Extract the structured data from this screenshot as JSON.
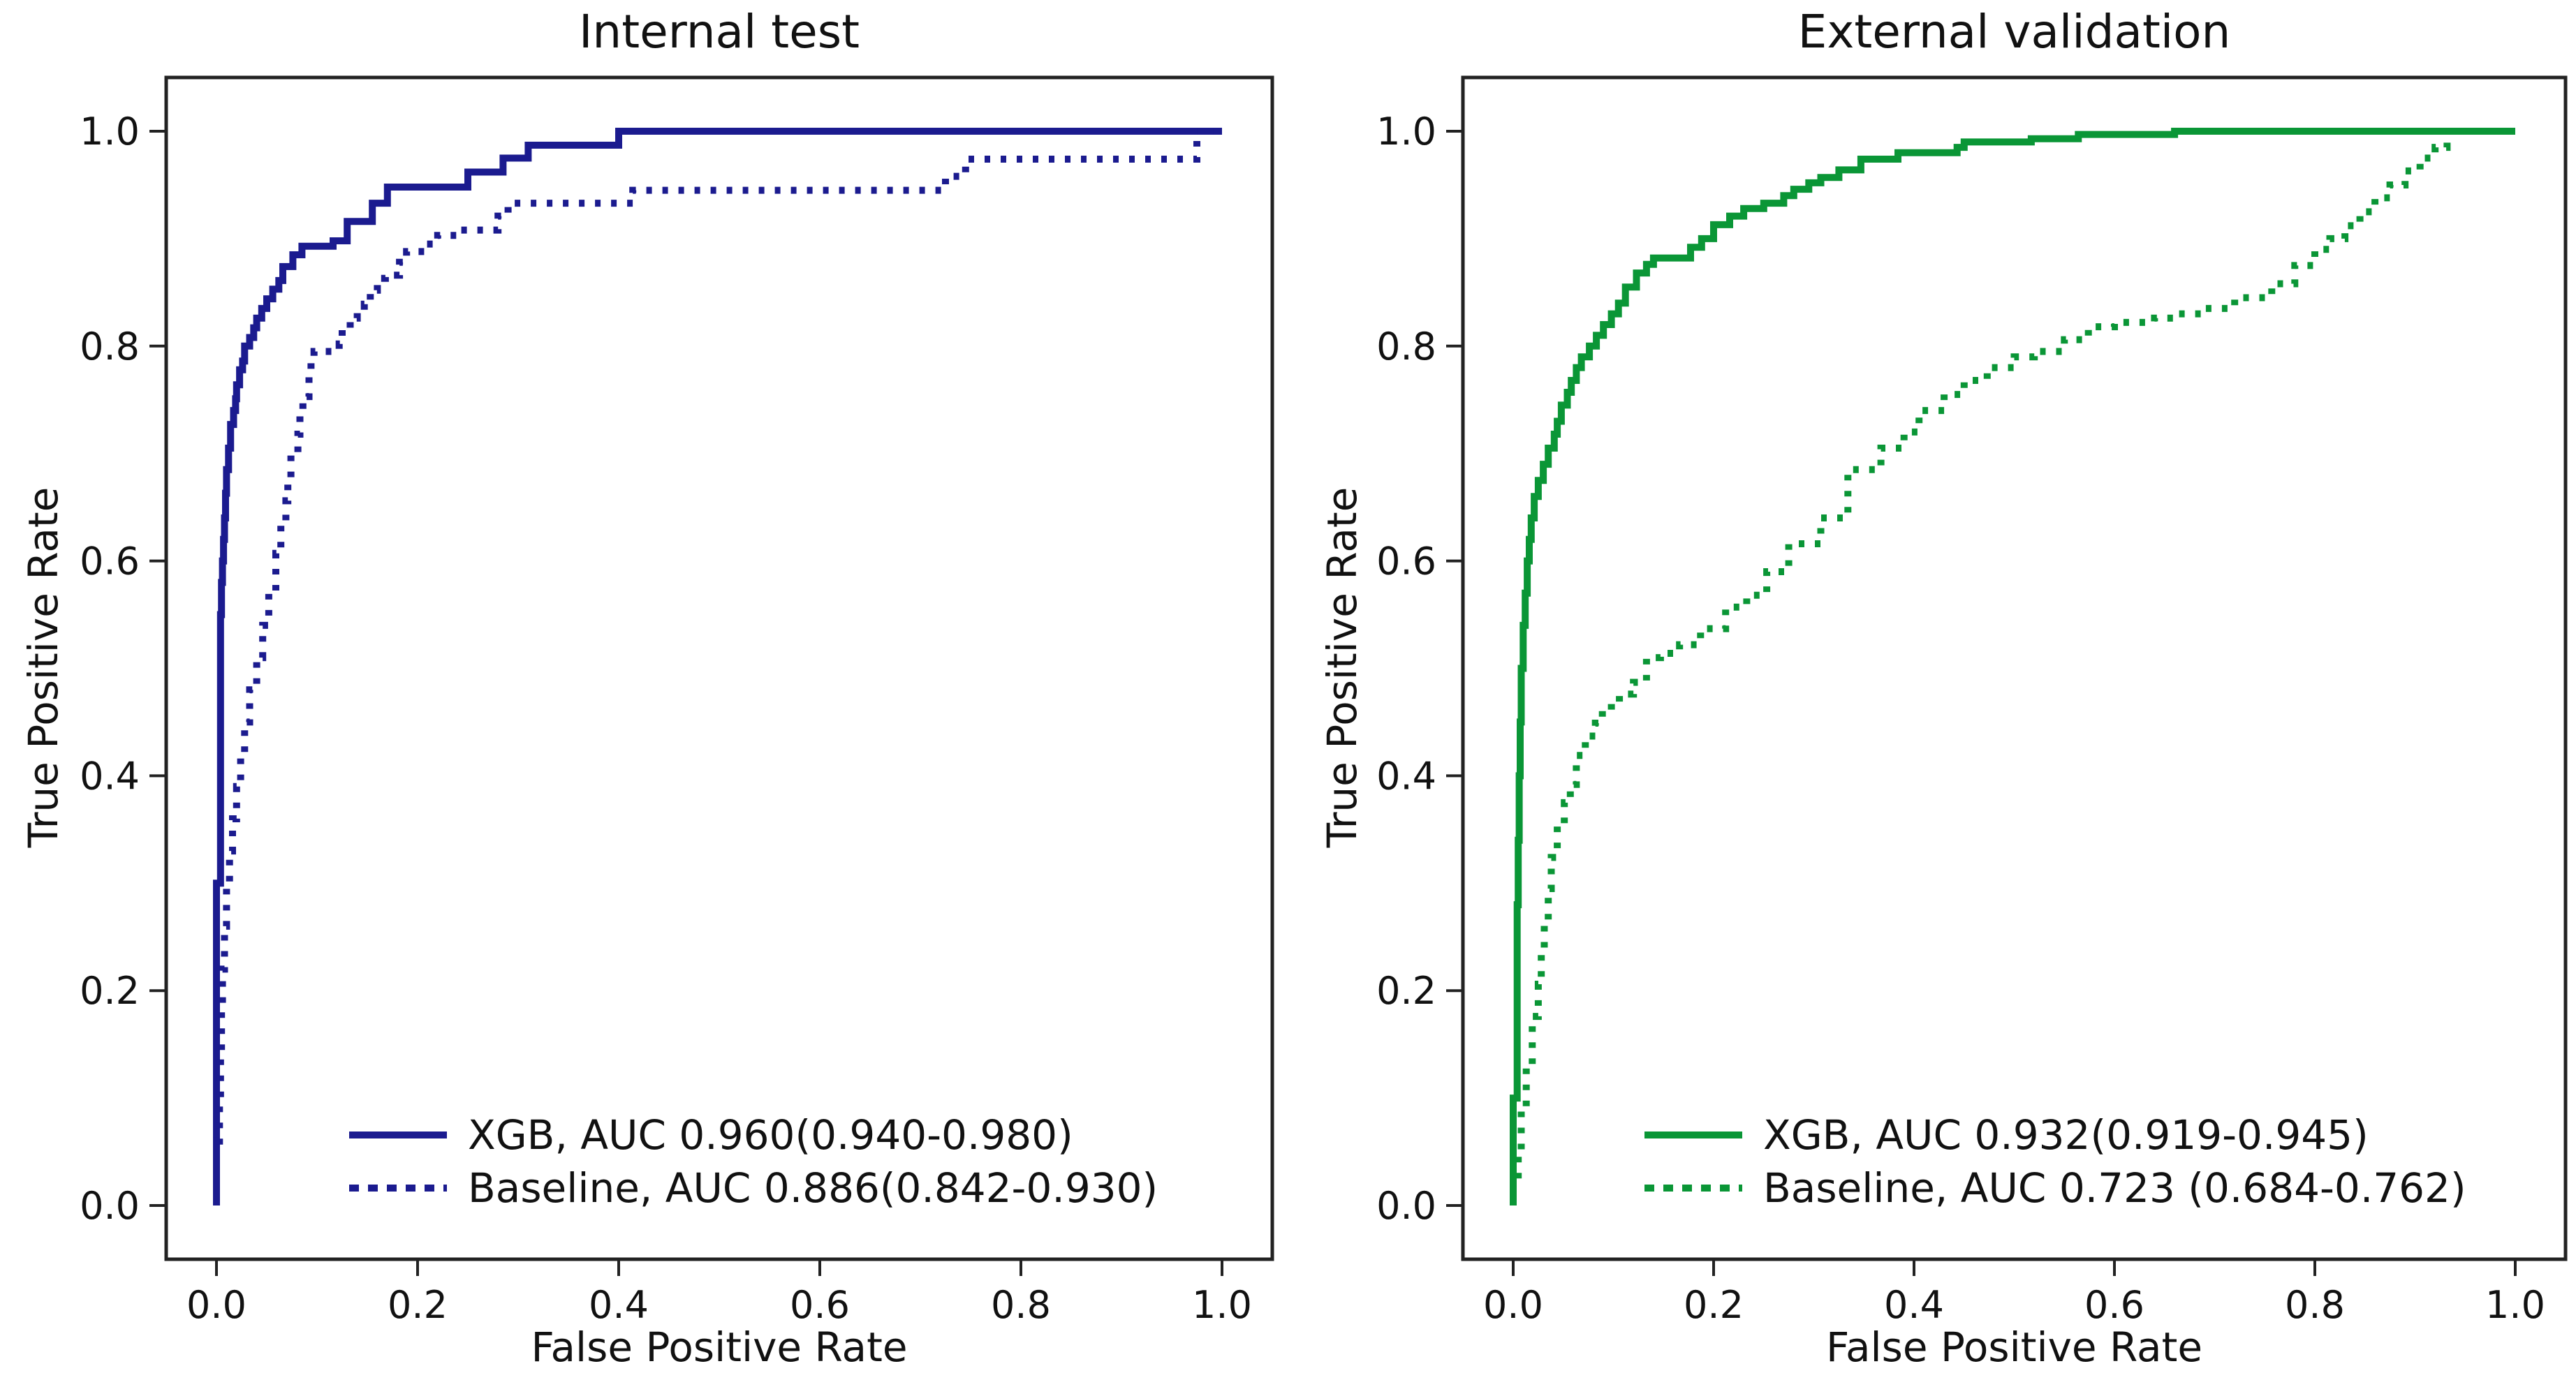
{
  "figure": {
    "background_color": "#ffffff",
    "text_color": "#111111",
    "spine_color": "#222222"
  },
  "chart_data": [
    {
      "type": "line",
      "subtype": "roc-step-curves",
      "title": "Internal test",
      "xlabel": "False Positive Rate",
      "ylabel": "True Positive Rate",
      "xlim": [
        -0.05,
        1.05
      ],
      "ylim": [
        -0.05,
        1.05
      ],
      "grid": false,
      "legend_position": "lower right",
      "xticks": {
        "labels": [
          "0.0",
          "0.2",
          "0.4",
          "0.6",
          "0.8",
          "1.0"
        ],
        "values": [
          0,
          0.2,
          0.4,
          0.6,
          0.8,
          1.0
        ]
      },
      "yticks": {
        "labels": [
          "0.0",
          "0.2",
          "0.4",
          "0.6",
          "0.8",
          "1.0"
        ],
        "values": [
          0,
          0.2,
          0.4,
          0.6,
          0.8,
          1.0
        ]
      },
      "accent_color": "#1b1b8f",
      "series": [
        {
          "name": "XGB",
          "legend_label": "XGB, AUC 0.960(0.940-0.980)",
          "auc": 0.96,
          "auc_ci": [
            0.94,
            0.98
          ],
          "line_style": "solid",
          "color": "#1b1b8f",
          "points": [
            [
              0,
              0
            ],
            [
              0.004,
              0.3
            ],
            [
              0.004,
              0.5
            ],
            [
              0.005,
              0.55
            ],
            [
              0.006,
              0.58
            ],
            [
              0.007,
              0.6
            ],
            [
              0.008,
              0.62
            ],
            [
              0.009,
              0.64
            ],
            [
              0.01,
              0.663
            ],
            [
              0.012,
              0.685
            ],
            [
              0.014,
              0.705
            ],
            [
              0.017,
              0.727
            ],
            [
              0.019,
              0.74
            ],
            [
              0.02,
              0.751
            ],
            [
              0.023,
              0.764
            ],
            [
              0.026,
              0.778
            ],
            [
              0.028,
              0.786
            ],
            [
              0.033,
              0.8
            ],
            [
              0.037,
              0.808
            ],
            [
              0.04,
              0.817
            ],
            [
              0.045,
              0.826
            ],
            [
              0.05,
              0.835
            ],
            [
              0.056,
              0.844
            ],
            [
              0.062,
              0.853
            ],
            [
              0.066,
              0.861
            ],
            [
              0.076,
              0.874
            ],
            [
              0.085,
              0.885
            ],
            [
              0.116,
              0.893
            ],
            [
              0.13,
              0.898
            ],
            [
              0.155,
              0.916
            ],
            [
              0.17,
              0.933
            ],
            [
              0.25,
              0.948
            ],
            [
              0.285,
              0.962
            ],
            [
              0.31,
              0.975
            ],
            [
              0.4,
              0.987
            ],
            [
              0.435,
              1.0
            ],
            [
              1.0,
              1.0
            ]
          ]
        },
        {
          "name": "Baseline",
          "legend_label": "Baseline, AUC 0.886(0.842-0.930)",
          "auc": 0.886,
          "auc_ci": [
            0.842,
            0.93
          ],
          "line_style": "dotted",
          "color": "#1b1b8f",
          "points": [
            [
              0,
              0
            ],
            [
              0.003,
              0.06
            ],
            [
              0.004,
              0.1
            ],
            [
              0.005,
              0.14
            ],
            [
              0.006,
              0.18
            ],
            [
              0.008,
              0.22
            ],
            [
              0.01,
              0.26
            ],
            [
              0.013,
              0.3
            ],
            [
              0.016,
              0.33
            ],
            [
              0.02,
              0.36
            ],
            [
              0.024,
              0.39
            ],
            [
              0.028,
              0.42
            ],
            [
              0.033,
              0.45
            ],
            [
              0.04,
              0.48
            ],
            [
              0.046,
              0.51
            ],
            [
              0.052,
              0.54
            ],
            [
              0.059,
              0.57
            ],
            [
              0.064,
              0.607
            ],
            [
              0.069,
              0.634
            ],
            [
              0.071,
              0.656
            ],
            [
              0.074,
              0.676
            ],
            [
              0.081,
              0.7
            ],
            [
              0.083,
              0.718
            ],
            [
              0.086,
              0.735
            ],
            [
              0.092,
              0.753
            ],
            [
              0.094,
              0.771
            ],
            [
              0.097,
              0.786
            ],
            [
              0.122,
              0.795
            ],
            [
              0.125,
              0.802
            ],
            [
              0.133,
              0.817
            ],
            [
              0.14,
              0.826
            ],
            [
              0.147,
              0.833
            ],
            [
              0.153,
              0.839
            ],
            [
              0.16,
              0.852
            ],
            [
              0.168,
              0.863
            ],
            [
              0.182,
              0.866
            ],
            [
              0.189,
              0.878
            ],
            [
              0.207,
              0.888
            ],
            [
              0.22,
              0.895
            ],
            [
              0.24,
              0.903
            ],
            [
              0.28,
              0.908
            ],
            [
              0.29,
              0.921
            ],
            [
              0.414,
              0.933
            ],
            [
              0.567,
              0.945
            ],
            [
              0.725,
              0.945
            ],
            [
              0.745,
              0.958
            ],
            [
              0.765,
              0.974
            ],
            [
              0.975,
              0.974
            ],
            [
              0.985,
              1.0
            ],
            [
              1.0,
              1.0
            ]
          ]
        }
      ]
    },
    {
      "type": "line",
      "subtype": "roc-step-curves",
      "title": "External validation",
      "xlabel": "False Positive Rate",
      "ylabel": "True Positive Rate",
      "xlim": [
        -0.05,
        1.05
      ],
      "ylim": [
        -0.05,
        1.05
      ],
      "grid": false,
      "legend_position": "lower right",
      "xticks": {
        "labels": [
          "0.0",
          "0.2",
          "0.4",
          "0.6",
          "0.8",
          "1.0"
        ],
        "values": [
          0,
          0.2,
          0.4,
          0.6,
          0.8,
          1.0
        ]
      },
      "yticks": {
        "labels": [
          "0.0",
          "0.2",
          "0.4",
          "0.6",
          "0.8",
          "1.0"
        ],
        "values": [
          0,
          0.2,
          0.4,
          0.6,
          0.8,
          1.0
        ]
      },
      "accent_color": "#0a9636",
      "series": [
        {
          "name": "XGB",
          "legend_label": "XGB, AUC 0.932(0.919-0.945)",
          "auc": 0.932,
          "auc_ci": [
            0.919,
            0.945
          ],
          "line_style": "solid",
          "color": "#0a9636",
          "points": [
            [
              0,
              0
            ],
            [
              0.004,
              0.1
            ],
            [
              0.004,
              0.2
            ],
            [
              0.005,
              0.28
            ],
            [
              0.006,
              0.34
            ],
            [
              0.007,
              0.4
            ],
            [
              0.008,
              0.45
            ],
            [
              0.01,
              0.5
            ],
            [
              0.012,
              0.54
            ],
            [
              0.014,
              0.57
            ],
            [
              0.016,
              0.6
            ],
            [
              0.018,
              0.62
            ],
            [
              0.021,
              0.64
            ],
            [
              0.025,
              0.66
            ],
            [
              0.03,
              0.675
            ],
            [
              0.035,
              0.69
            ],
            [
              0.041,
              0.705
            ],
            [
              0.044,
              0.718
            ],
            [
              0.048,
              0.73
            ],
            [
              0.054,
              0.745
            ],
            [
              0.058,
              0.757
            ],
            [
              0.063,
              0.768
            ],
            [
              0.068,
              0.78
            ],
            [
              0.076,
              0.79
            ],
            [
              0.083,
              0.8
            ],
            [
              0.09,
              0.81
            ],
            [
              0.098,
              0.82
            ],
            [
              0.105,
              0.83
            ],
            [
              0.112,
              0.84
            ],
            [
              0.123,
              0.855
            ],
            [
              0.133,
              0.868
            ],
            [
              0.14,
              0.876
            ],
            [
              0.177,
              0.882
            ],
            [
              0.188,
              0.892
            ],
            [
              0.2,
              0.9
            ],
            [
              0.216,
              0.913
            ],
            [
              0.23,
              0.921
            ],
            [
              0.25,
              0.928
            ],
            [
              0.27,
              0.933
            ],
            [
              0.28,
              0.94
            ],
            [
              0.295,
              0.946
            ],
            [
              0.307,
              0.952
            ],
            [
              0.325,
              0.957
            ],
            [
              0.347,
              0.964
            ],
            [
              0.384,
              0.974
            ],
            [
              0.443,
              0.98
            ],
            [
              0.45,
              0.985
            ],
            [
              0.517,
              0.99
            ],
            [
              0.564,
              0.993
            ],
            [
              0.66,
              0.997
            ],
            [
              0.68,
              1.0
            ],
            [
              1.0,
              1.0
            ]
          ]
        },
        {
          "name": "Baseline",
          "legend_label": "Baseline, AUC 0.723 (0.684-0.762)",
          "auc": 0.723,
          "auc_ci": [
            0.684,
            0.762
          ],
          "line_style": "dotted",
          "color": "#0a9636",
          "points": [
            [
              0,
              0
            ],
            [
              0.005,
              0.02
            ],
            [
              0.008,
              0.05
            ],
            [
              0.013,
              0.09
            ],
            [
              0.019,
              0.13
            ],
            [
              0.025,
              0.176
            ],
            [
              0.028,
              0.206
            ],
            [
              0.031,
              0.236
            ],
            [
              0.035,
              0.265
            ],
            [
              0.038,
              0.295
            ],
            [
              0.044,
              0.324
            ],
            [
              0.051,
              0.354
            ],
            [
              0.057,
              0.375
            ],
            [
              0.063,
              0.392
            ],
            [
              0.072,
              0.419
            ],
            [
              0.082,
              0.437
            ],
            [
              0.089,
              0.449
            ],
            [
              0.098,
              0.461
            ],
            [
              0.106,
              0.468
            ],
            [
              0.12,
              0.476
            ],
            [
              0.133,
              0.487
            ],
            [
              0.147,
              0.51
            ],
            [
              0.166,
              0.514
            ],
            [
              0.187,
              0.522
            ],
            [
              0.212,
              0.537
            ],
            [
              0.233,
              0.557
            ],
            [
              0.253,
              0.568
            ],
            [
              0.275,
              0.59
            ],
            [
              0.307,
              0.616
            ],
            [
              0.334,
              0.64
            ],
            [
              0.367,
              0.685
            ],
            [
              0.39,
              0.705
            ],
            [
              0.405,
              0.72
            ],
            [
              0.43,
              0.74
            ],
            [
              0.45,
              0.755
            ],
            [
              0.473,
              0.768
            ],
            [
              0.5,
              0.78
            ],
            [
              0.52,
              0.79
            ],
            [
              0.55,
              0.795
            ],
            [
              0.574,
              0.806
            ],
            [
              0.6,
              0.818
            ],
            [
              0.64,
              0.822
            ],
            [
              0.66,
              0.826
            ],
            [
              0.69,
              0.83
            ],
            [
              0.72,
              0.835
            ],
            [
              0.757,
              0.845
            ],
            [
              0.78,
              0.858
            ],
            [
              0.8,
              0.875
            ],
            [
              0.815,
              0.89
            ],
            [
              0.83,
              0.9
            ],
            [
              0.845,
              0.912
            ],
            [
              0.86,
              0.925
            ],
            [
              0.875,
              0.938
            ],
            [
              0.89,
              0.95
            ],
            [
              0.905,
              0.963
            ],
            [
              0.92,
              0.975
            ],
            [
              0.932,
              0.985
            ],
            [
              0.945,
              1.0
            ],
            [
              1.0,
              1.0
            ]
          ]
        }
      ]
    }
  ]
}
